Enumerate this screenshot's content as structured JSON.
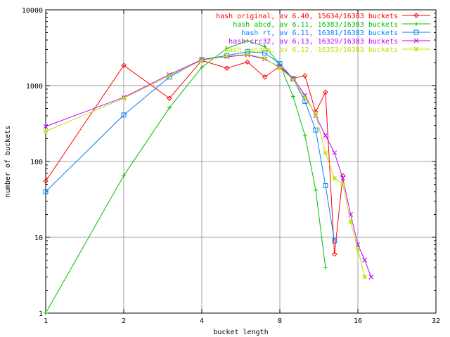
{
  "chart_data": {
    "type": "line",
    "title": "",
    "xlabel": "bucket length",
    "ylabel": "number of buckets",
    "xscale": "log2",
    "yscale": "log10",
    "xlim": [
      1,
      32
    ],
    "ylim": [
      1,
      10000
    ],
    "grid": true,
    "legend_position": "top-right",
    "x_ticks": [
      {
        "value": 1,
        "label": "1"
      },
      {
        "value": 2,
        "label": "2"
      },
      {
        "value": 4,
        "label": "4"
      },
      {
        "value": 8,
        "label": "8"
      },
      {
        "value": 16,
        "label": "16"
      },
      {
        "value": 32,
        "label": "32"
      }
    ],
    "y_ticks": [
      {
        "value": 1,
        "label": "1"
      },
      {
        "value": 10,
        "label": "10"
      },
      {
        "value": 100,
        "label": "100"
      },
      {
        "value": 1000,
        "label": "1000"
      },
      {
        "value": 10000,
        "label": "10000"
      }
    ],
    "series": [
      {
        "name": "hash original, av 6.40, 15634/16383 buckets",
        "color": "#ff0000",
        "marker": "diamond",
        "x": [
          1,
          2,
          3,
          4,
          5,
          6,
          7,
          8,
          9,
          10,
          11,
          12,
          13,
          14
        ],
        "y": [
          55,
          1850,
          680,
          2150,
          1700,
          2050,
          1300,
          1800,
          1250,
          1350,
          450,
          820,
          6,
          65
        ]
      },
      {
        "name": "hash abcd, av 6.11, 16383/16383 buckets",
        "color": "#00c000",
        "marker": "plus",
        "x": [
          1,
          2,
          3,
          4,
          5,
          6,
          7,
          8,
          9,
          10,
          11,
          12
        ],
        "y": [
          1,
          65,
          510,
          1750,
          3100,
          3900,
          3300,
          1900,
          720,
          220,
          42,
          4
        ]
      },
      {
        "name": "hash rt, av 6.11, 16381/16383 buckets",
        "color": "#0080ff",
        "marker": "square",
        "x": [
          1,
          2,
          3,
          4,
          5,
          6,
          7,
          8,
          9,
          10,
          11,
          12,
          13
        ],
        "y": [
          40,
          410,
          1300,
          2200,
          2500,
          2800,
          2700,
          1950,
          1230,
          620,
          260,
          48,
          9
        ]
      },
      {
        "name": "hash crc32, av 6.13, 16329/16383 buckets",
        "color": "#c000ff",
        "marker": "x",
        "x": [
          1,
          2,
          3,
          4,
          5,
          6,
          7,
          8,
          9,
          10,
          11,
          12,
          13,
          14,
          15,
          16,
          17,
          18
        ],
        "y": [
          290,
          700,
          1400,
          2200,
          2400,
          2550,
          2250,
          1750,
          1250,
          750,
          400,
          220,
          130,
          60,
          20,
          8,
          5,
          3
        ]
      },
      {
        "name": "hash random, av 6.12, 16353/16383 buckets",
        "color": "#c0e000",
        "marker": "star",
        "x": [
          1,
          2,
          3,
          4,
          5,
          6,
          7,
          8,
          9,
          10,
          11,
          12,
          13,
          14,
          15,
          16,
          17
        ],
        "y": [
          250,
          680,
          1350,
          2150,
          2450,
          2600,
          2300,
          1700,
          1200,
          700,
          420,
          130,
          60,
          50,
          16,
          7,
          3
        ]
      }
    ]
  }
}
